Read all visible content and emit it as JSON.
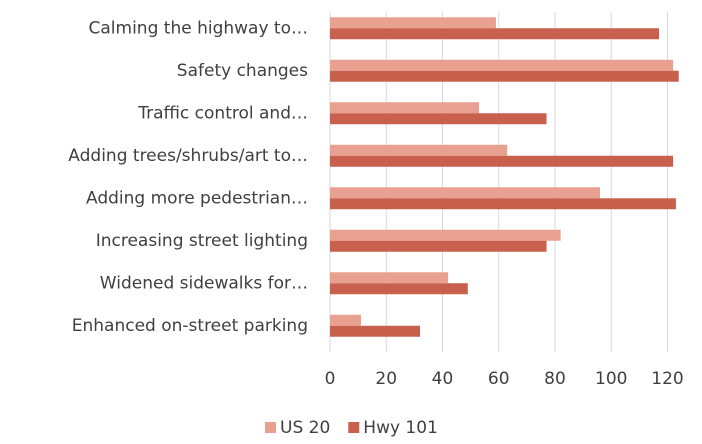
{
  "chart_data": {
    "type": "hbar",
    "categories": [
      "Calming the highway to…",
      "Safety changes",
      "Traffic control and…",
      "Adding trees/shrubs/art to…",
      "Adding more pedestrian…",
      "Increasing street lighting",
      "Widened sidewalks for…",
      "Enhanced on-street parking"
    ],
    "series": [
      {
        "name": "US 20",
        "color": "#e8a191",
        "values": [
          59,
          122,
          53,
          63,
          96,
          82,
          42,
          11
        ]
      },
      {
        "name": "Hwy 101",
        "color": "#c9604e",
        "values": [
          117,
          124,
          77,
          122,
          123,
          77,
          49,
          32
        ]
      }
    ],
    "xlim": [
      0,
      128
    ],
    "xticks": [
      0,
      20,
      40,
      60,
      80,
      100,
      120
    ],
    "grid": true,
    "legend": "bottom"
  }
}
